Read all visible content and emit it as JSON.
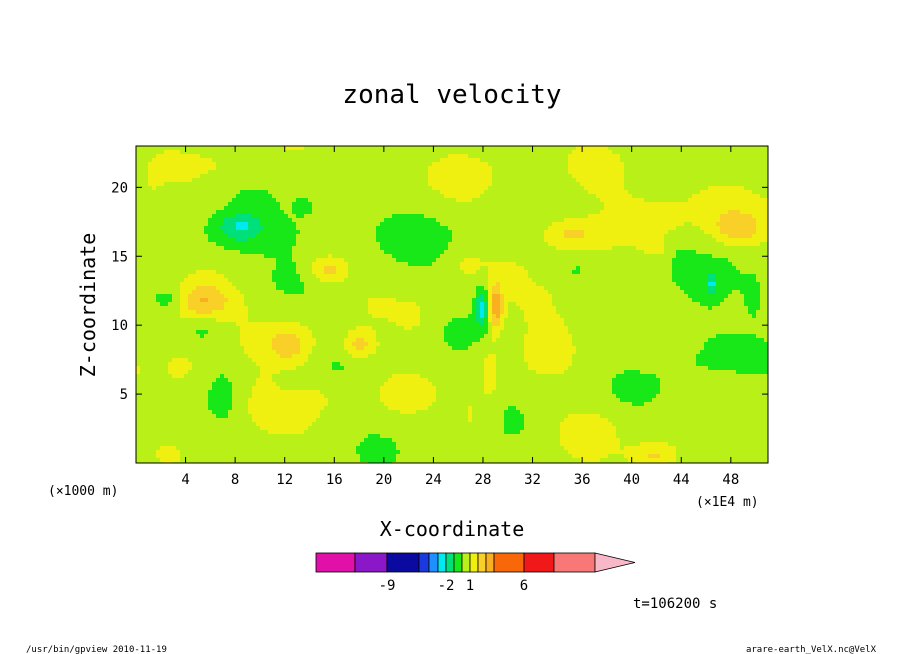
{
  "chart_data": {
    "type": "heatmap",
    "title": "zonal velocity",
    "xlabel": "X-coordinate",
    "ylabel": "Z-coordinate",
    "x_unit": "(×1E4 m)",
    "y_unit": "(×1000 m)",
    "xlim": [
      0,
      51
    ],
    "ylim": [
      0,
      23
    ],
    "x_ticks": [
      4,
      8,
      12,
      16,
      20,
      24,
      28,
      32,
      36,
      40,
      44,
      48
    ],
    "y_ticks": [
      5,
      10,
      15,
      20
    ],
    "colorbar": {
      "levels": [
        -12,
        -9,
        -6,
        -4,
        -3,
        -2,
        -1,
        0,
        1,
        2,
        3,
        4,
        6,
        9,
        12
      ],
      "labels": [
        {
          "value": -9,
          "text": "-9"
        },
        {
          "value": -2,
          "text": "-2"
        },
        {
          "value": 1,
          "text": "1"
        },
        {
          "value": 6,
          "text": "6"
        }
      ],
      "colors": [
        "#e010a8",
        "#8a18c8",
        "#0a0aa0",
        "#1a3ae0",
        "#1e90ff",
        "#00e8f0",
        "#00e07a",
        "#18e818",
        "#b8f018",
        "#f0f010",
        "#f8d028",
        "#f8b020",
        "#f86808",
        "#f01818",
        "#f87878",
        "#f8b8c8"
      ]
    },
    "blobs": [
      {
        "x": 4.5,
        "y": 11.8,
        "rx": 3.0,
        "ry": 1.3,
        "v": 3.5
      },
      {
        "x": 3.0,
        "y": 11.9,
        "rx": 1.8,
        "ry": 1.0,
        "v": -2.5
      },
      {
        "x": 8.0,
        "y": 16.5,
        "rx": 3.0,
        "ry": 1.4,
        "v": -1.6
      },
      {
        "x": 8.5,
        "y": 17.3,
        "rx": 1.6,
        "ry": 0.8,
        "v": -1.4
      },
      {
        "x": 13.5,
        "y": 18.7,
        "rx": 0.7,
        "ry": 0.6,
        "v": -1.2
      },
      {
        "x": 15.0,
        "y": 17.2,
        "rx": 3.5,
        "ry": 1.8,
        "v": -0.7
      },
      {
        "x": 22.0,
        "y": 16.8,
        "rx": 4.0,
        "ry": 1.6,
        "v": -0.6
      },
      {
        "x": 12.5,
        "y": 8.5,
        "rx": 2.0,
        "ry": 1.5,
        "v": 2.0
      },
      {
        "x": 18.0,
        "y": 8.5,
        "rx": 1.3,
        "ry": 1.0,
        "v": 2.0
      },
      {
        "x": 15.5,
        "y": 14.0,
        "rx": 1.5,
        "ry": 1.0,
        "v": 2.0
      },
      {
        "x": 28.0,
        "y": 11.3,
        "rx": 0.6,
        "ry": 1.6,
        "v": -3.0
      },
      {
        "x": 29.0,
        "y": 11.3,
        "rx": 0.6,
        "ry": 1.6,
        "v": 3.2
      },
      {
        "x": 35.0,
        "y": 16.7,
        "rx": 2.5,
        "ry": 1.2,
        "v": 2.0
      },
      {
        "x": 41.5,
        "y": 18.0,
        "rx": 3.0,
        "ry": 1.5,
        "v": 1.0
      },
      {
        "x": 46.0,
        "y": 19.0,
        "rx": 3.0,
        "ry": 1.8,
        "v": 1.0
      },
      {
        "x": 48.5,
        "y": 17.0,
        "rx": 2.0,
        "ry": 1.2,
        "v": 2.0
      },
      {
        "x": 38.0,
        "y": 20.5,
        "rx": 3.0,
        "ry": 2.0,
        "v": 0.6
      },
      {
        "x": 45.0,
        "y": 9.0,
        "rx": 3.0,
        "ry": 4.0,
        "v": -0.7
      },
      {
        "x": 44.0,
        "y": 14.5,
        "rx": 1.0,
        "ry": 1.2,
        "v": -0.7
      },
      {
        "x": 40.0,
        "y": 14.5,
        "rx": 2.0,
        "ry": 1.0,
        "v": -0.6
      },
      {
        "x": 46.5,
        "y": 13.0,
        "rx": 0.4,
        "ry": 0.7,
        "v": -2.2
      },
      {
        "x": 42.0,
        "y": 15.5,
        "rx": 1.0,
        "ry": 0.6,
        "v": 0.7
      },
      {
        "x": 50.0,
        "y": 12.0,
        "rx": 1.0,
        "ry": 1.8,
        "v": -0.7
      },
      {
        "x": 14.5,
        "y": 5.0,
        "rx": 2.5,
        "ry": 1.4,
        "v": 0.7
      },
      {
        "x": 21.0,
        "y": 5.0,
        "rx": 2.0,
        "ry": 1.5,
        "v": 0.7
      },
      {
        "x": 34.0,
        "y": 11.0,
        "rx": 3.5,
        "ry": 3.0,
        "v": 0.8
      },
      {
        "x": 36.5,
        "y": 2.5,
        "rx": 2.5,
        "ry": 1.5,
        "v": 0.8
      },
      {
        "x": 42.0,
        "y": 0.5,
        "rx": 2.0,
        "ry": 1.0,
        "v": 2.0
      },
      {
        "x": 10.0,
        "y": 4.5,
        "rx": 1.5,
        "ry": 2.0,
        "v": 0.9
      },
      {
        "x": 4.0,
        "y": 6.5,
        "rx": 2.0,
        "ry": 2.5,
        "v": 0.8
      },
      {
        "x": 7.0,
        "y": 5.0,
        "rx": 0.7,
        "ry": 1.3,
        "v": -0.8
      },
      {
        "x": 1.0,
        "y": 18.0,
        "rx": 1.2,
        "ry": 2.0,
        "v": 0.8
      },
      {
        "x": 7.5,
        "y": 21.5,
        "rx": 4.0,
        "ry": 1.5,
        "v": 0.6
      },
      {
        "x": 19.5,
        "y": 21.0,
        "rx": 5.0,
        "ry": 1.5,
        "v": 0.6
      },
      {
        "x": 27.0,
        "y": 21.5,
        "rx": 3.0,
        "ry": 1.5,
        "v": 0.6
      },
      {
        "x": 26.5,
        "y": 14.5,
        "rx": 1.5,
        "ry": 1.2,
        "v": 0.6
      },
      {
        "x": 33.0,
        "y": 14.0,
        "rx": 1.0,
        "ry": 0.8,
        "v": -0.6
      },
      {
        "x": 35.5,
        "y": 14.0,
        "rx": 1.0,
        "ry": 0.6,
        "v": -0.6
      },
      {
        "x": 22.5,
        "y": 10.5,
        "rx": 1.5,
        "ry": 1.5,
        "v": 0.6
      },
      {
        "x": 5.5,
        "y": 9.5,
        "rx": 1.5,
        "ry": 1.0,
        "v": -0.7
      },
      {
        "x": 28.5,
        "y": 6.0,
        "rx": 1.0,
        "ry": 4.0,
        "v": 0.9
      },
      {
        "x": 25.0,
        "y": 3.5,
        "rx": 0.5,
        "ry": 1.0,
        "v": -0.6
      },
      {
        "x": 27.0,
        "y": 3.5,
        "rx": 0.6,
        "ry": 1.5,
        "v": 0.8
      }
    ],
    "base_field": {
      "value": 0.45,
      "wave_amp_x": 0.35,
      "wave_amp_z": 0.25
    }
  },
  "footer": {
    "time_label": "t=106200 s",
    "program": "/usr/bin/gpview  2010-11-19",
    "source": "arare-earth_VelX.nc@VelX"
  }
}
